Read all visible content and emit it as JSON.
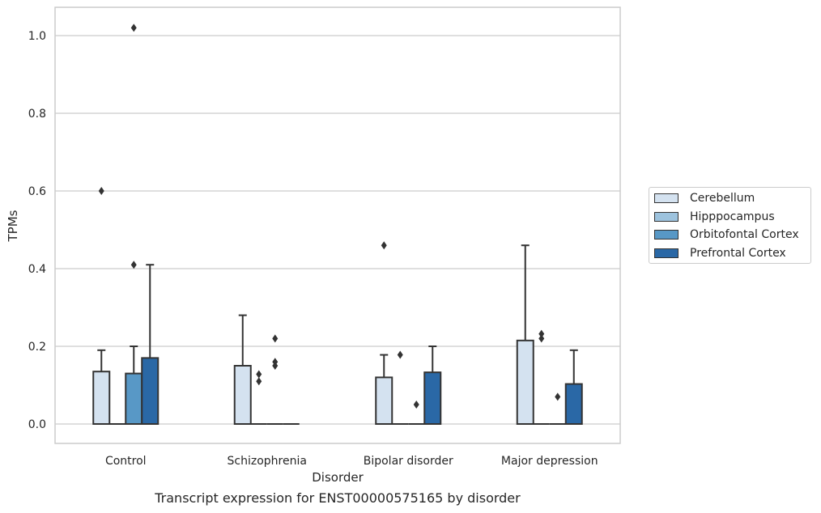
{
  "chart_data": {
    "type": "box",
    "xlabel": "Disorder",
    "ylabel": "TPMs",
    "caption": "Transcript expression for ENST00000575165 by disorder",
    "categories": [
      "Control",
      "Schizophrenia",
      "Bipolar disorder",
      "Major depression"
    ],
    "ylim": [
      -0.05,
      1.07
    ],
    "yticks": [
      "0.0",
      "0.2",
      "0.4",
      "0.6",
      "0.8",
      "1.0"
    ],
    "grid": "horizontal",
    "legend_position": "right",
    "series": [
      {
        "name": "Cerebellum",
        "color": "#d4e2f0",
        "boxes": [
          {
            "q1": 0,
            "q3": 0.135,
            "median": 0,
            "whisker_low": 0,
            "whisker_high": 0.19,
            "outliers": [
              0.6
            ]
          },
          {
            "q1": 0,
            "q3": 0.15,
            "median": 0,
            "whisker_low": 0,
            "whisker_high": 0.28,
            "outliers": []
          },
          {
            "q1": 0,
            "q3": 0.12,
            "median": 0,
            "whisker_low": 0,
            "whisker_high": 0.178,
            "outliers": [
              0.46
            ]
          },
          {
            "q1": 0,
            "q3": 0.215,
            "median": 0,
            "whisker_low": 0,
            "whisker_high": 0.46,
            "outliers": []
          }
        ]
      },
      {
        "name": "Hipppocampus",
        "color": "#9dc3de",
        "boxes": [
          {
            "q1": 0,
            "q3": 0,
            "median": 0,
            "whisker_low": 0,
            "whisker_high": 0,
            "outliers": []
          },
          {
            "q1": 0,
            "q3": 0,
            "median": 0,
            "whisker_low": 0,
            "whisker_high": 0,
            "outliers": [
              0.11,
              0.128
            ]
          },
          {
            "q1": 0,
            "q3": 0,
            "median": 0,
            "whisker_low": 0,
            "whisker_high": 0,
            "outliers": [
              0.178
            ]
          },
          {
            "q1": 0,
            "q3": 0,
            "median": 0,
            "whisker_low": 0,
            "whisker_high": 0,
            "outliers": [
              0.22,
              0.232
            ]
          }
        ]
      },
      {
        "name": "Orbitofontal Cortex",
        "color": "#5898c6",
        "boxes": [
          {
            "q1": 0,
            "q3": 0.13,
            "median": 0,
            "whisker_low": 0,
            "whisker_high": 0.2,
            "outliers": [
              0.41,
              1.02
            ]
          },
          {
            "q1": 0,
            "q3": 0,
            "median": 0,
            "whisker_low": 0,
            "whisker_high": 0,
            "outliers": [
              0.15,
              0.16,
              0.22
            ]
          },
          {
            "q1": 0,
            "q3": 0,
            "median": 0,
            "whisker_low": 0,
            "whisker_high": 0,
            "outliers": [
              0.05
            ]
          },
          {
            "q1": 0,
            "q3": 0,
            "median": 0,
            "whisker_low": 0,
            "whisker_high": 0,
            "outliers": [
              0.07
            ]
          }
        ]
      },
      {
        "name": "Prefrontal Cortex",
        "color": "#2a68a6",
        "boxes": [
          {
            "q1": 0,
            "q3": 0.17,
            "median": 0,
            "whisker_low": 0,
            "whisker_high": 0.41,
            "outliers": []
          },
          {
            "q1": 0,
            "q3": 0,
            "median": 0,
            "whisker_low": 0,
            "whisker_high": 0,
            "outliers": []
          },
          {
            "q1": 0,
            "q3": 0.133,
            "median": 0,
            "whisker_low": 0,
            "whisker_high": 0.2,
            "outliers": []
          },
          {
            "q1": 0,
            "q3": 0.103,
            "median": 0,
            "whisker_low": 0,
            "whisker_high": 0.19,
            "outliers": []
          }
        ]
      }
    ]
  }
}
